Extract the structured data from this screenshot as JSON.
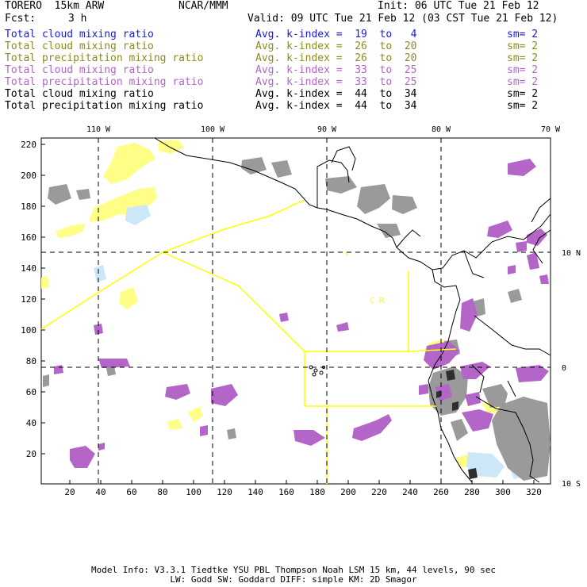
{
  "header": {
    "model": "TORERO  15km ARW",
    "org": "NCAR/MMM",
    "init": "Init: 06 UTC Tue 21 Feb 12",
    "fcst_label": "Fcst:",
    "fcst_value": "3 h",
    "valid": "Valid: 09 UTC Tue 21 Feb 12 (03 CST Tue 21 Feb 12)"
  },
  "legend": [
    {
      "field": "Total cloud mixing ratio",
      "stat": "Avg. k-index =  19  to   4",
      "sm": "sm= 2",
      "color": "#1a1adc"
    },
    {
      "field": "Total cloud mixing ratio",
      "stat": "Avg. k-index =  26  to  20",
      "sm": "sm= 2",
      "color": "#8c8c1e"
    },
    {
      "field": "Total precipitation mixing ratio",
      "stat": "Avg. k-index =  26  to  20",
      "sm": "sm= 2",
      "color": "#8c8c1e"
    },
    {
      "field": "Total cloud mixing ratio",
      "stat": "Avg. k-index =  33  to  25",
      "sm": "sm= 2",
      "color": "#b366c8"
    },
    {
      "field": "Total precipitation mixing ratio",
      "stat": "Avg. k-index =  33  to  25",
      "sm": "sm= 2",
      "color": "#b366c8"
    },
    {
      "field": "Total cloud mixing ratio",
      "stat": "Avg. k-index =  44  to  34",
      "sm": "sm= 2",
      "color": "#000000"
    },
    {
      "field": "Total precipitation mixing ratio",
      "stat": "Avg. k-index =  44  to  34",
      "sm": "sm= 2",
      "color": "#000000"
    }
  ],
  "map": {
    "lon_labels": [
      "110 W",
      "100 W",
      "90 W",
      "80 W",
      "70 W"
    ],
    "lat_labels_right": [
      "10 N",
      "0",
      "10 S"
    ],
    "y_ticks": [
      "220",
      "200",
      "180",
      "160",
      "140",
      "120",
      "100",
      "80",
      "60",
      "40",
      "20"
    ],
    "x_ticks": [
      "20",
      "40",
      "60",
      "80",
      "100",
      "120",
      "140",
      "160",
      "180",
      "200",
      "220",
      "240",
      "260",
      "280",
      "300",
      "320"
    ],
    "region_label": "C  R",
    "colors": {
      "yellow_cloud": "#ffff88",
      "blue_cloud": "#cce8f8",
      "purple": "#b366c8",
      "gray": "#9a9a9a",
      "dark": "#333333",
      "boundary": "#ffff00",
      "grid": "#000000"
    }
  },
  "footer": {
    "line1": "Model Info: V3.3.1    Tiedtke YSU PBL  Thompson     Noah LSM  15 km,   44 levels,   90 sec",
    "line2": "LW: Godd SW: Goddard DIFF: simple KM: 2D Smagor"
  }
}
